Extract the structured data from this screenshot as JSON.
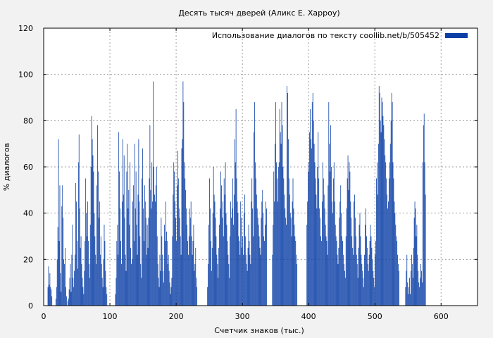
{
  "chart_data": {
    "type": "bar",
    "title": "Десять тысяч дверей (Аликс Е. Харроу)",
    "xlabel": "Счетчик знаков (тыс.)",
    "ylabel": "% диалогов",
    "xlim": [
      0,
      655
    ],
    "ylim": [
      0,
      120
    ],
    "x_ticks": [
      0,
      100,
      200,
      300,
      400,
      500,
      600
    ],
    "y_ticks": [
      0,
      20,
      40,
      60,
      80,
      100,
      120
    ],
    "grid": true,
    "legend_position": "top-right",
    "series": [
      {
        "name": "Использование диалогов по тексту  coollib.net/b/505452",
        "color": "#0b3fa6",
        "bin_width": 1,
        "x_start": 6,
        "values": [
          8,
          17,
          9,
          14,
          8,
          7,
          4,
          0,
          0,
          0,
          0,
          0,
          3,
          8,
          20,
          34,
          72,
          28,
          52,
          14,
          6,
          43,
          52,
          38,
          20,
          18,
          25,
          8,
          4,
          0,
          2,
          3,
          7,
          12,
          18,
          6,
          22,
          35,
          12,
          8,
          15,
          22,
          53,
          45,
          28,
          16,
          62,
          74,
          42,
          25,
          30,
          18,
          12,
          8,
          5,
          15,
          28,
          55,
          40,
          30,
          45,
          28,
          18,
          12,
          35,
          60,
          82,
          72,
          65,
          58,
          40,
          30,
          22,
          18,
          52,
          78,
          58,
          38,
          45,
          22,
          30,
          18,
          12,
          8,
          20,
          35,
          28,
          15,
          8,
          5,
          0,
          0,
          0,
          0,
          0,
          0,
          0,
          0,
          0,
          0,
          0,
          0,
          5,
          12,
          28,
          35,
          22,
          75,
          58,
          42,
          28,
          18,
          45,
          72,
          48,
          65,
          38,
          22,
          15,
          58,
          70,
          42,
          50,
          35,
          62,
          25,
          18,
          20,
          45,
          52,
          28,
          70,
          42,
          58,
          35,
          22,
          48,
          72,
          45,
          30,
          18,
          12,
          55,
          68,
          42,
          28,
          52,
          45,
          38,
          22,
          35,
          25,
          38,
          55,
          78,
          50,
          42,
          62,
          45,
          97,
          60,
          48,
          45,
          52,
          60,
          30,
          18,
          12,
          8,
          22,
          15,
          38,
          30,
          22,
          15,
          10,
          35,
          28,
          45,
          32,
          28,
          18,
          22,
          15,
          10,
          5,
          8,
          12,
          30,
          48,
          62,
          58,
          45,
          38,
          28,
          52,
          67,
          55,
          42,
          38,
          30,
          22,
          68,
          72,
          97,
          88,
          62,
          55,
          50,
          42,
          35,
          28,
          22,
          30,
          42,
          38,
          45,
          30,
          22,
          28,
          35,
          15,
          18,
          25,
          12,
          8,
          0,
          0,
          0,
          0,
          0,
          0,
          0,
          0,
          0,
          0,
          0,
          0,
          0,
          0,
          0,
          8,
          18,
          35,
          55,
          42,
          28,
          15,
          25,
          40,
          60,
          48,
          45,
          38,
          30,
          22,
          18,
          12,
          25,
          35,
          42,
          58,
          52,
          38,
          45,
          30,
          55,
          48,
          62,
          40,
          35,
          28,
          22,
          18,
          12,
          30,
          45,
          38,
          42,
          55,
          35,
          48,
          72,
          62,
          85,
          55,
          45,
          40,
          30,
          28,
          22,
          45,
          38,
          25,
          30,
          22,
          40,
          48,
          30,
          22,
          18,
          15,
          25,
          35,
          28,
          22,
          18,
          45,
          55,
          42,
          30,
          75,
          88,
          62,
          55,
          48,
          42,
          38,
          35,
          30,
          25,
          22,
          38,
          45,
          50,
          40,
          30,
          28,
          35,
          45,
          42,
          0,
          0,
          0,
          0,
          0,
          0,
          0,
          0,
          22,
          35,
          58,
          45,
          70,
          88,
          62,
          55,
          45,
          60,
          62,
          85,
          75,
          70,
          88,
          78,
          60,
          55,
          48,
          42,
          38,
          35,
          95,
          92,
          72,
          55,
          48,
          40,
          38,
          30,
          45,
          55,
          42,
          35,
          30,
          28,
          22,
          18,
          0,
          0,
          0,
          0,
          0,
          0,
          0,
          0,
          0,
          0,
          0,
          0,
          0,
          0,
          35,
          45,
          62,
          58,
          75,
          85,
          72,
          68,
          88,
          92,
          80,
          70,
          62,
          55,
          48,
          42,
          60,
          75,
          55,
          42,
          38,
          30,
          28,
          45,
          62,
          55,
          48,
          42,
          35,
          30,
          28,
          22,
          52,
          88,
          70,
          58,
          78,
          60,
          45,
          40,
          55,
          62,
          45,
          35,
          30,
          28,
          22,
          18,
          25,
          38,
          45,
          52,
          40,
          30,
          28,
          22,
          18,
          15,
          12,
          30,
          42,
          55,
          65,
          50,
          62,
          58,
          45,
          38,
          30,
          25,
          22,
          45,
          48,
          38,
          30,
          22,
          18,
          12,
          25,
          35,
          40,
          30,
          22,
          18,
          15,
          12,
          8,
          22,
          35,
          42,
          30,
          25,
          18,
          15,
          22,
          28,
          35,
          30,
          25,
          20,
          15,
          12,
          8,
          22,
          28,
          55,
          62,
          48,
          70,
          95,
          92,
          80,
          75,
          90,
          88,
          82,
          78,
          72,
          65,
          62,
          55,
          48,
          42,
          45,
          55,
          62,
          70,
          80,
          92,
          88,
          62,
          55,
          45,
          40,
          35,
          30,
          28,
          22,
          18,
          15,
          0,
          0,
          0,
          0,
          0,
          0,
          0,
          0,
          0,
          8,
          15,
          22,
          10,
          5,
          8,
          12,
          5,
          15,
          22,
          18,
          12,
          25,
          38,
          45,
          42,
          30,
          35,
          22,
          15,
          10,
          8,
          12,
          18,
          15,
          10,
          62,
          78,
          83,
          62,
          48
        ]
      }
    ]
  }
}
